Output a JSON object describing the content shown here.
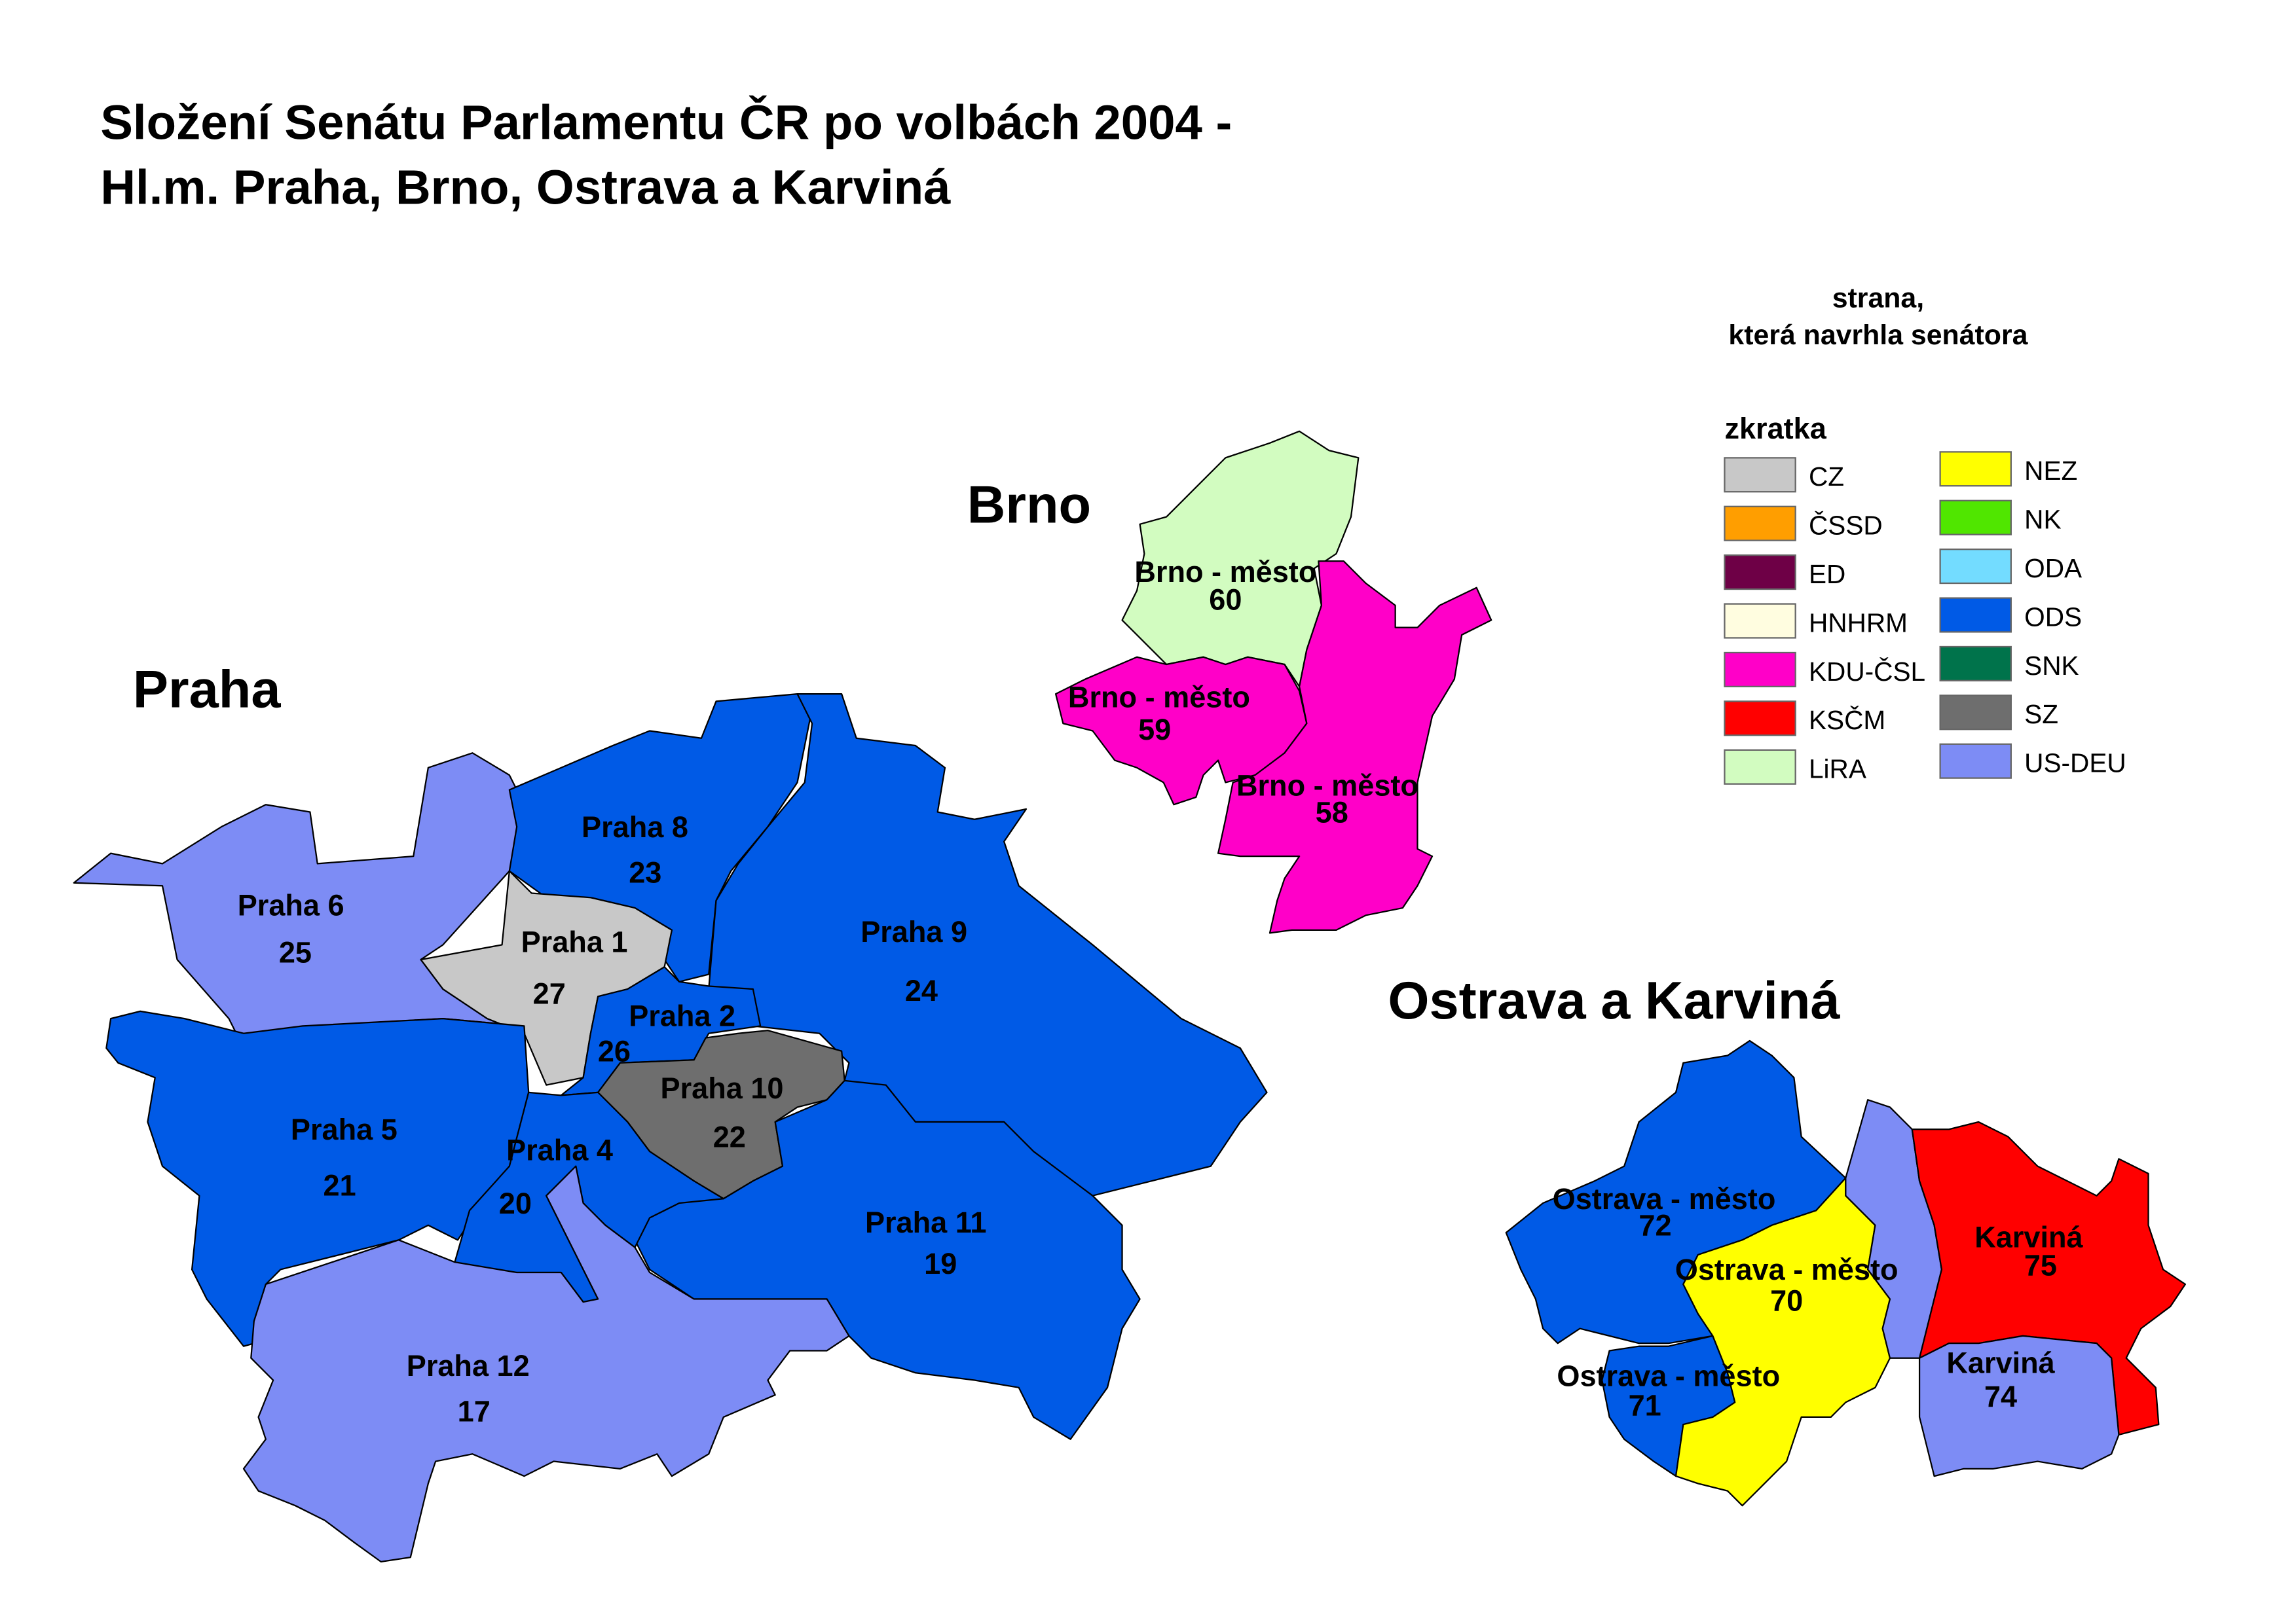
{
  "title": {
    "line1": "Složení Senátu Parlamentu ČR po volbách 2004 -",
    "line2": "Hl.m. Praha, Brno, Ostrava a Karviná"
  },
  "cities": {
    "praha": "Praha",
    "brno": "Brno",
    "ostrava": "Ostrava a Karviná"
  },
  "legend": {
    "heading1": "strana,",
    "heading2": "která navrhla senátora",
    "subheading": "zkratka",
    "items": [
      {
        "label": "CZ",
        "color": "#c8c8c8"
      },
      {
        "label": "ČSSD",
        "color": "#ff9e00"
      },
      {
        "label": "ED",
        "color": "#6e0046"
      },
      {
        "label": "HNHRM",
        "color": "#fffde0"
      },
      {
        "label": "KDU-ČSL",
        "color": "#ff00c8"
      },
      {
        "label": "KSČM",
        "color": "#ff0000"
      },
      {
        "label": "LiRA",
        "color": "#d2fcc0"
      },
      {
        "label": "NEZ",
        "color": "#ffff00"
      },
      {
        "label": "NK",
        "color": "#50e600"
      },
      {
        "label": "ODA",
        "color": "#73dcff"
      },
      {
        "label": "ODS",
        "color": "#005ae6"
      },
      {
        "label": "SNK",
        "color": "#00734b"
      },
      {
        "label": "SZ",
        "color": "#6e6e6e"
      },
      {
        "label": "US-DEU",
        "color": "#7d8cf5"
      }
    ]
  },
  "regions": {
    "p6": {
      "name": "Praha 6",
      "number": "25",
      "party": "US-DEU"
    },
    "p1": {
      "name": "Praha 1",
      "number": "27",
      "party": "CZ"
    },
    "p8": {
      "name": "Praha 8",
      "number": "23",
      "party": "ODS"
    },
    "p9": {
      "name": "Praha 9",
      "number": "24",
      "party": "ODS"
    },
    "p2": {
      "name": "Praha 2",
      "number": "26",
      "party": "ODS"
    },
    "p10": {
      "name": "Praha 10",
      "number": "22",
      "party": "SZ"
    },
    "p11": {
      "name": "Praha 11",
      "number": "19",
      "party": "ODS"
    },
    "p5": {
      "name": "Praha 5",
      "number": "21",
      "party": "ODS"
    },
    "p4": {
      "name": "Praha 4",
      "number": "20",
      "party": "ODS"
    },
    "p12": {
      "name": "Praha 12",
      "number": "17",
      "party": "US-DEU"
    },
    "b60": {
      "name": "Brno - město",
      "number": "60",
      "party": "LiRA"
    },
    "b59": {
      "name": "Brno - město",
      "number": "59",
      "party": "KDU-ČSL"
    },
    "b58": {
      "name": "Brno - město",
      "number": "58",
      "party": "KDU-ČSL"
    },
    "o72": {
      "name": "Ostrava - město",
      "number": "72",
      "party": "ODS"
    },
    "o71": {
      "name": "Ostrava - město",
      "number": "71",
      "party": "ODS"
    },
    "o70": {
      "name": "Ostrava - město",
      "number": "70",
      "party": "NEZ"
    },
    "ous": {
      "party": "US-DEU"
    },
    "k75": {
      "name": "Karviná",
      "number": "75",
      "party": "KSČM"
    },
    "k74": {
      "name": "Karviná",
      "number": "74",
      "party": "US-DEU"
    }
  }
}
